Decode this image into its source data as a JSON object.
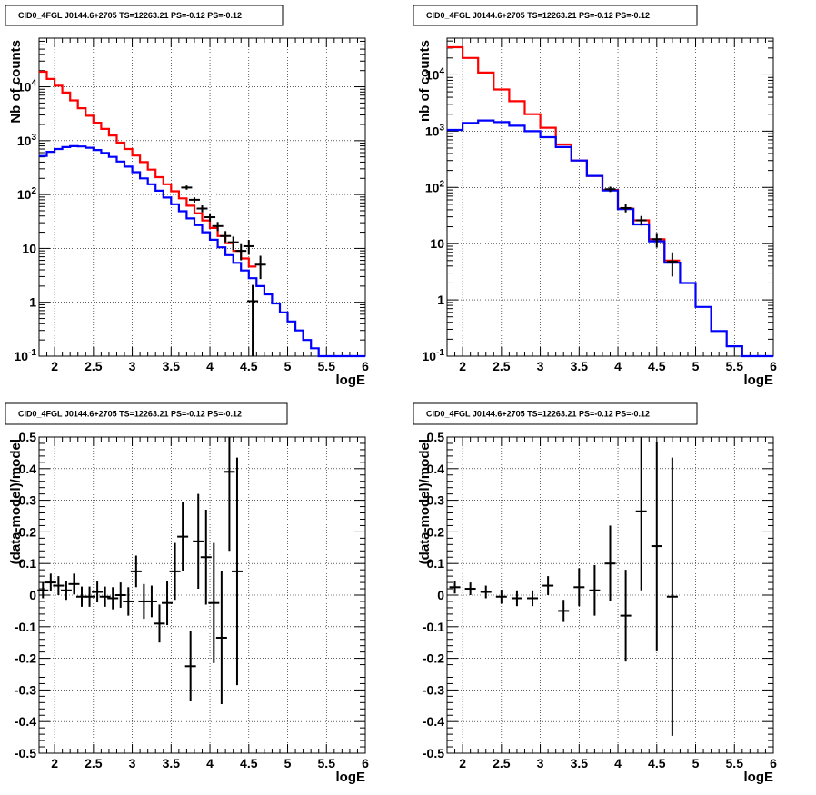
{
  "chart_data": [
    {
      "type": "line",
      "title": "CID0_4FGL J0144.6+2705 TS=12263.21 PS=-0.12 PS=-0.12",
      "xlabel": "logE",
      "ylabel": "Nb of counts",
      "xlim": [
        1.8,
        6
      ],
      "ylim": [
        0.1,
        80000
      ],
      "yscale": "log",
      "grid": true,
      "x_ticks": [
        "2",
        "2.5",
        "3",
        "3.5",
        "4",
        "4.5",
        "5",
        "5.5",
        "6"
      ],
      "y_ticks": [
        "10^-1",
        "1",
        "10",
        "10^2",
        "10^3",
        "10^4"
      ],
      "series": [
        {
          "color": "#ff0000",
          "bin_edges": [
            1.8,
            1.9,
            2.0,
            2.1,
            2.2,
            2.3,
            2.4,
            2.5,
            2.6,
            2.7,
            2.8,
            2.9,
            3.0,
            3.1,
            3.2,
            3.3,
            3.4,
            3.5,
            3.6,
            3.7,
            3.8,
            3.9,
            4.0,
            4.1,
            4.2,
            4.3,
            4.4,
            4.5,
            4.6
          ],
          "values": [
            19000,
            14000,
            10500,
            7800,
            5600,
            4000,
            2900,
            2150,
            1650,
            1250,
            920,
            700,
            530,
            400,
            290,
            210,
            155,
            115,
            85,
            62,
            45,
            33,
            24,
            17,
            12.5,
            9,
            6.5,
            4.6
          ]
        },
        {
          "color": "#0000ff",
          "bin_edges": [
            1.8,
            1.9,
            2.0,
            2.1,
            2.2,
            2.3,
            2.4,
            2.5,
            2.6,
            2.7,
            2.8,
            2.9,
            3.0,
            3.1,
            3.2,
            3.3,
            3.4,
            3.5,
            3.6,
            3.7,
            3.8,
            3.9,
            4.0,
            4.1,
            4.2,
            4.3,
            4.4,
            4.5,
            4.6,
            4.7,
            4.8,
            4.9,
            5.0,
            5.1,
            5.2,
            5.3,
            5.4,
            5.5,
            5.6,
            5.7,
            5.8,
            5.9,
            6.0
          ],
          "values": [
            520,
            620,
            700,
            760,
            790,
            780,
            740,
            670,
            590,
            500,
            410,
            330,
            260,
            200,
            155,
            118,
            88,
            66,
            49,
            36,
            27,
            20,
            14.5,
            10.5,
            7.5,
            5.4,
            3.9,
            2.8,
            2.0,
            1.4,
            0.95,
            0.65,
            0.44,
            0.3,
            0.2,
            0.14,
            0.1,
            0.1,
            0.1,
            0.1,
            0.1,
            0.1
          ]
        },
        {
          "color": "#000000",
          "type": "points",
          "x": [
            3.7,
            3.8,
            3.9,
            4.0,
            4.1,
            4.2,
            4.3,
            4.4,
            4.5,
            4.55,
            4.65
          ],
          "y": [
            135,
            80,
            55,
            38,
            26,
            17,
            13,
            9,
            11,
            1.05,
            5
          ],
          "err": [
            12,
            9,
            8,
            6.5,
            5,
            4,
            3.6,
            3,
            3.4,
            1.05,
            2.3
          ]
        }
      ]
    },
    {
      "type": "line",
      "title": "CID0_4FGL J0144.6+2705 TS=12263.21 PS=-0.12 PS=-0.12",
      "xlabel": "logE",
      "ylabel": "nb of counts",
      "xlim": [
        1.8,
        6
      ],
      "ylim": [
        0.1,
        45000
      ],
      "yscale": "log",
      "grid": true,
      "x_ticks": [
        "2",
        "2.5",
        "3",
        "3.5",
        "4",
        "4.5",
        "5",
        "5.5",
        "6"
      ],
      "y_ticks": [
        "10^-1",
        "1",
        "10",
        "10^2",
        "10^3",
        "10^4"
      ],
      "series": [
        {
          "color": "#ff0000",
          "bin_edges": [
            1.8,
            2.0,
            2.2,
            2.4,
            2.6,
            2.8,
            3.0,
            3.2,
            3.4,
            3.6,
            3.8,
            4.0,
            4.2,
            4.4,
            4.6,
            4.8
          ],
          "values": [
            31000,
            20000,
            11000,
            5500,
            3400,
            2000,
            1150,
            580,
            300,
            160,
            90,
            42,
            26,
            12,
            5
          ],
          "err": [
            0,
            0,
            0,
            0,
            0,
            0,
            0,
            0,
            0,
            0,
            0,
            0,
            0,
            0,
            0
          ]
        },
        {
          "color": "#0000ff",
          "bin_edges": [
            1.8,
            2.0,
            2.2,
            2.4,
            2.6,
            2.8,
            3.0,
            3.2,
            3.4,
            3.6,
            3.8,
            4.0,
            4.2,
            4.4,
            4.6,
            4.8,
            5.0,
            5.2,
            5.4,
            5.6,
            5.8,
            6.0
          ],
          "values": [
            1050,
            1400,
            1550,
            1450,
            1250,
            1000,
            780,
            520,
            300,
            160,
            88,
            41,
            22,
            11,
            4.6,
            2.0,
            0.75,
            0.28,
            0.15,
            0.1,
            0.1
          ]
        },
        {
          "color": "#000000",
          "type": "points",
          "x": [
            3.9,
            4.1,
            4.3,
            4.5,
            4.7
          ],
          "y": [
            93,
            43,
            26,
            12,
            4.8
          ],
          "err": [
            10,
            7,
            5,
            3.5,
            2.2
          ]
        }
      ]
    },
    {
      "type": "scatter",
      "title": "CID0_4FGL J0144.6+2705 TS=12263.21 PS=-0.12 PS=-0.12",
      "xlabel": "logE",
      "ylabel": "(data-model)/model",
      "xlim": [
        1.8,
        6
      ],
      "ylim": [
        -0.5,
        0.5
      ],
      "grid": true,
      "x_ticks": [
        "2",
        "2.5",
        "3",
        "3.5",
        "4",
        "4.5",
        "5",
        "5.5",
        "6"
      ],
      "y_ticks": [
        "-0.5",
        "-0.4",
        "-0.3",
        "-0.2",
        "-0.1",
        "0",
        "0.1",
        "0.2",
        "0.3",
        "0.4",
        "0.5"
      ],
      "series": [
        {
          "color": "#000000",
          "x": [
            1.85,
            1.95,
            2.05,
            2.15,
            2.25,
            2.35,
            2.45,
            2.55,
            2.65,
            2.75,
            2.85,
            2.95,
            3.05,
            3.15,
            3.25,
            3.35,
            3.45,
            3.55,
            3.65,
            3.75,
            3.85,
            3.95,
            4.05,
            4.15,
            4.25,
            4.35
          ],
          "y": [
            0.015,
            0.04,
            0.03,
            0.015,
            0.035,
            -0.005,
            -0.005,
            0.01,
            -0.005,
            -0.01,
            0.0,
            -0.02,
            0.075,
            -0.02,
            -0.02,
            -0.09,
            -0.025,
            0.075,
            0.185,
            -0.225,
            0.17,
            0.12,
            -0.025,
            -0.135,
            0.39,
            0.075
          ],
          "err": [
            0.025,
            0.028,
            0.03,
            0.03,
            0.033,
            0.032,
            0.032,
            0.033,
            0.032,
            0.035,
            0.04,
            0.045,
            0.05,
            0.055,
            0.05,
            0.06,
            0.07,
            0.09,
            0.11,
            0.11,
            0.15,
            0.15,
            0.19,
            0.21,
            0.25,
            0.36
          ]
        }
      ]
    },
    {
      "type": "scatter",
      "title": "CID0_4FGL J0144.6+2705 TS=12263.21 PS=-0.12 PS=-0.12",
      "xlabel": "logE",
      "ylabel": "(data-model)/model",
      "xlim": [
        1.8,
        6
      ],
      "ylim": [
        -0.5,
        0.5
      ],
      "grid": true,
      "x_ticks": [
        "2",
        "2.5",
        "3",
        "3.5",
        "4",
        "4.5",
        "5",
        "5.5",
        "6"
      ],
      "y_ticks": [
        "-0.5",
        "-0.4",
        "-0.3",
        "-0.2",
        "-0.1",
        "0",
        "0.1",
        "0.2",
        "0.3",
        "0.4",
        "0.5"
      ],
      "series": [
        {
          "color": "#000000",
          "x": [
            1.9,
            2.1,
            2.3,
            2.5,
            2.7,
            2.9,
            3.1,
            3.3,
            3.5,
            3.7,
            3.9,
            4.1,
            4.3,
            4.5,
            4.7
          ],
          "y": [
            0.025,
            0.02,
            0.01,
            -0.005,
            -0.01,
            -0.01,
            0.03,
            -0.05,
            0.025,
            0.015,
            0.1,
            -0.065,
            0.265,
            0.155,
            -0.005
          ],
          "err": [
            0.02,
            0.02,
            0.02,
            0.022,
            0.025,
            0.025,
            0.03,
            0.035,
            0.06,
            0.08,
            0.12,
            0.145,
            0.25,
            0.33,
            0.44
          ]
        }
      ]
    }
  ]
}
